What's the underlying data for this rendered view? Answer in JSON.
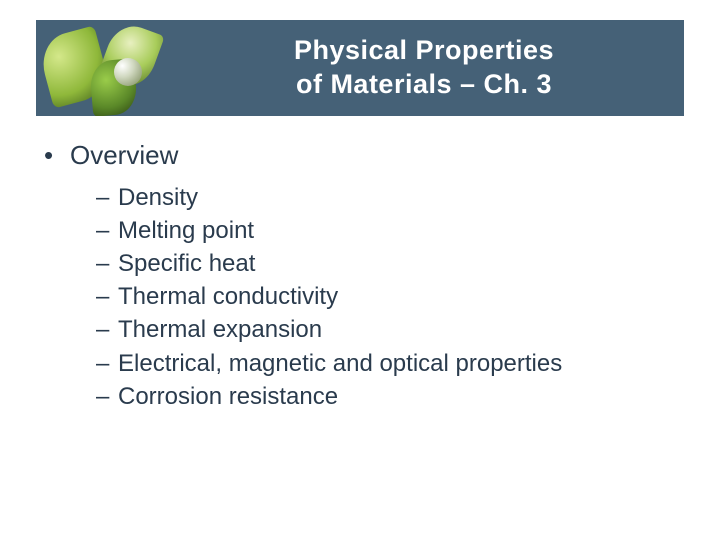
{
  "header": {
    "title_line1": "Physical Properties",
    "title_line2": "of Materials – Ch. 3",
    "banner_bg": "#456177",
    "title_color": "#ffffff",
    "title_fontsize": 27
  },
  "content": {
    "text_color": "#2a3b4d",
    "l1_bullet": "•",
    "l2_bullet": "–",
    "l1_fontsize": 26,
    "l2_fontsize": 24,
    "level1": [
      {
        "label": "Overview",
        "children": [
          "Density",
          "Melting point",
          "Specific heat",
          "Thermal conductivity",
          "Thermal expansion",
          "Electrical, magnetic and optical properties",
          "Corrosion resistance"
        ]
      }
    ]
  },
  "background_color": "#ffffff"
}
